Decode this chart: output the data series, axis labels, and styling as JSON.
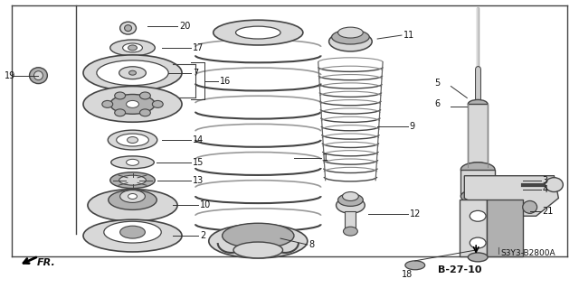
{
  "bg_color": "#ffffff",
  "fig_w": 6.4,
  "fig_h": 3.19,
  "dpi": 100,
  "ref_code": "B-27-10",
  "title_text": "S3Y3-B2800A",
  "gray_light": "#d8d8d8",
  "gray_mid": "#b0b0b0",
  "gray_dark": "#888888",
  "line_col": "#444444",
  "label_col": "#111111"
}
